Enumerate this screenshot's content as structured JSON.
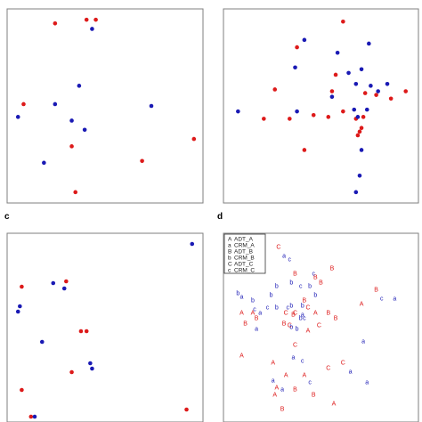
{
  "colors": {
    "red": "#dd1a1a",
    "blue": "#1a1ab4",
    "frame": "#7f7f7f"
  },
  "chart_data": [
    {
      "type": "scatter",
      "panel": "a",
      "label": "",
      "xlim": [
        0,
        100
      ],
      "ylim": [
        0,
        100
      ],
      "grid": false,
      "series": [
        {
          "color": "red",
          "points": [
            [
              23,
              95
            ],
            [
              40,
              97
            ],
            [
              45,
              97
            ],
            [
              6,
              51
            ],
            [
              70,
              20
            ],
            [
              32,
              28
            ],
            [
              98,
              32
            ],
            [
              34,
              3
            ]
          ]
        },
        {
          "color": "blue",
          "points": [
            [
              43,
              92
            ],
            [
              36,
              61
            ],
            [
              75,
              50
            ],
            [
              3,
              44
            ],
            [
              23,
              51
            ],
            [
              32,
              42
            ],
            [
              39,
              37
            ],
            [
              17,
              19
            ]
          ]
        }
      ]
    },
    {
      "type": "scatter",
      "panel": "b",
      "label": "",
      "xlim": [
        0,
        100
      ],
      "ylim": [
        0,
        100
      ],
      "grid": false,
      "series": [
        {
          "color": "red",
          "points": [
            [
              62,
              96
            ],
            [
              37,
              82
            ],
            [
              58,
              67
            ],
            [
              74,
              57
            ],
            [
              80,
              56
            ],
            [
              88,
              54
            ],
            [
              96,
              58
            ],
            [
              25,
              59
            ],
            [
              56,
              58
            ],
            [
              62,
              47
            ],
            [
              46,
              45
            ],
            [
              33,
              43
            ],
            [
              54,
              44
            ],
            [
              69,
              43
            ],
            [
              73,
              44
            ],
            [
              72,
              38
            ],
            [
              71,
              36
            ],
            [
              70,
              34
            ],
            [
              19,
              43
            ],
            [
              41,
              26
            ]
          ]
        },
        {
          "color": "blue",
          "points": [
            [
              41,
              86
            ],
            [
              76,
              84
            ],
            [
              59,
              79
            ],
            [
              72,
              70
            ],
            [
              36,
              71
            ],
            [
              65,
              68
            ],
            [
              77,
              61
            ],
            [
              69,
              62
            ],
            [
              56,
              55
            ],
            [
              81,
              58
            ],
            [
              86,
              62
            ],
            [
              5,
              47
            ],
            [
              37,
              47
            ],
            [
              68,
              48
            ],
            [
              75,
              48
            ],
            [
              70,
              44
            ],
            [
              72,
              26
            ],
            [
              71,
              12
            ],
            [
              69,
              3
            ]
          ]
        }
      ]
    },
    {
      "type": "scatter",
      "panel": "c",
      "label": "c",
      "xlim": [
        0,
        100
      ],
      "ylim": [
        0,
        100
      ],
      "grid": false,
      "series": [
        {
          "color": "red",
          "points": [
            [
              5,
              73
            ],
            [
              29,
              76
            ],
            [
              37,
              48
            ],
            [
              40,
              48
            ],
            [
              32,
              25
            ],
            [
              5,
              15
            ],
            [
              94,
              4
            ],
            [
              10,
              0
            ]
          ]
        },
        {
          "color": "blue",
          "points": [
            [
              97,
              97
            ],
            [
              22,
              75
            ],
            [
              28,
              72
            ],
            [
              4,
              62
            ],
            [
              3,
              59
            ],
            [
              16,
              42
            ],
            [
              42,
              30
            ],
            [
              43,
              27
            ],
            [
              12,
              0
            ]
          ]
        }
      ]
    },
    {
      "type": "scatter_letters",
      "panel": "d",
      "label": "d",
      "xlim": [
        0,
        100
      ],
      "ylim": [
        0,
        100
      ],
      "grid": false,
      "legend": {
        "position": "top-left",
        "entries": [
          {
            "symbol": "A",
            "name": "ADT_A",
            "color": "red"
          },
          {
            "symbol": "a",
            "name": "CRM_A",
            "color": "blue"
          },
          {
            "symbol": "B",
            "name": "ADT_B",
            "color": "red"
          },
          {
            "symbol": "b",
            "name": "CRM_B",
            "color": "blue"
          },
          {
            "symbol": "C",
            "name": "ADT_C",
            "color": "red"
          },
          {
            "symbol": "c",
            "name": "CRM_C",
            "color": "blue"
          }
        ]
      },
      "series": [
        {
          "name": "ADT_A",
          "symbol": "A",
          "color": "red",
          "points": [
            [
              13,
              58
            ],
            [
              7,
              58
            ],
            [
              72,
              63
            ],
            [
              47,
              58
            ],
            [
              43,
              48
            ],
            [
              7,
              34
            ],
            [
              24,
              30
            ],
            [
              31,
              23
            ],
            [
              41,
              23
            ],
            [
              26,
              16
            ],
            [
              25,
              12
            ],
            [
              57,
              7
            ]
          ]
        },
        {
          "name": "CRM_A",
          "symbol": "a",
          "color": "blue",
          "points": [
            [
              30,
              90
            ],
            [
              40,
              57
            ],
            [
              17,
              58
            ],
            [
              7,
              67
            ],
            [
              15,
              49
            ],
            [
              73,
              42
            ],
            [
              66,
              25
            ],
            [
              90,
              66
            ],
            [
              75,
              19
            ],
            [
              35,
              33
            ],
            [
              24,
              20
            ],
            [
              29,
              15
            ]
          ]
        },
        {
          "name": "ADT_B",
          "symbol": "B",
          "color": "red",
          "points": [
            [
              36,
              80
            ],
            [
              50,
              75
            ],
            [
              56,
              83
            ],
            [
              47,
              78
            ],
            [
              80,
              71
            ],
            [
              41,
              65
            ],
            [
              54,
              58
            ],
            [
              35,
              57
            ],
            [
              15,
              55
            ],
            [
              30,
              52
            ],
            [
              9,
              52
            ],
            [
              58,
              55
            ],
            [
              36,
              15
            ],
            [
              46,
              12
            ],
            [
              29,
              4
            ]
          ]
        },
        {
          "name": "CRM_B",
          "symbol": "b",
          "color": "blue",
          "points": [
            [
              34,
              75
            ],
            [
              26,
              73
            ],
            [
              44,
              73
            ],
            [
              26,
              61
            ],
            [
              40,
              62
            ],
            [
              34,
              62
            ],
            [
              47,
              68
            ],
            [
              23,
              68
            ],
            [
              13,
              65
            ],
            [
              37,
              49
            ],
            [
              34,
              50
            ],
            [
              39,
              55
            ],
            [
              5,
              69
            ]
          ]
        },
        {
          "name": "ADT_C",
          "symbol": "C",
          "color": "red",
          "points": [
            [
              27,
              95
            ],
            [
              43,
              61
            ],
            [
              31,
              58
            ],
            [
              36,
              58
            ],
            [
              33,
              51
            ],
            [
              49,
              51
            ],
            [
              62,
              30
            ],
            [
              54,
              27
            ],
            [
              36,
              40
            ]
          ]
        },
        {
          "name": "CRM_C",
          "symbol": "c",
          "color": "blue",
          "points": [
            [
              33,
              88
            ],
            [
              39,
              73
            ],
            [
              32,
              61
            ],
            [
              41,
              55
            ],
            [
              21,
              61
            ],
            [
              14,
              60
            ],
            [
              40,
              31
            ],
            [
              44,
              19
            ],
            [
              83,
              66
            ],
            [
              46,
              80
            ]
          ]
        }
      ]
    }
  ]
}
